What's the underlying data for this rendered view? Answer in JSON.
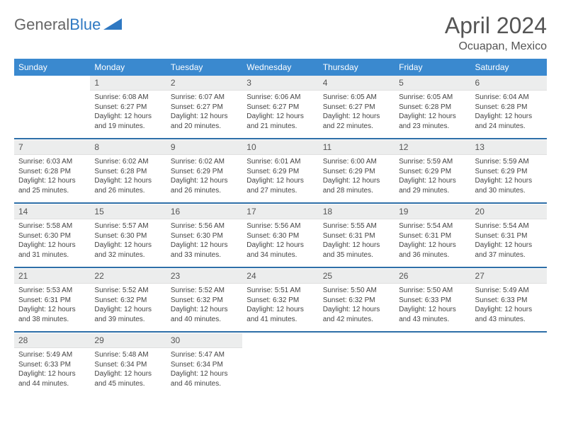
{
  "header": {
    "logo_general": "General",
    "logo_blue": "Blue",
    "month_title": "April 2024",
    "location": "Ocuapan, Mexico"
  },
  "colors": {
    "header_bg": "#3a89cf",
    "daynum_bg": "#eceded",
    "week_divider": "#2e6fa8",
    "text": "#444444",
    "title": "#555555"
  },
  "weekdays": [
    "Sunday",
    "Monday",
    "Tuesday",
    "Wednesday",
    "Thursday",
    "Friday",
    "Saturday"
  ],
  "weeks": [
    [
      null,
      {
        "n": "1",
        "sr": "Sunrise: 6:08 AM",
        "ss": "Sunset: 6:27 PM",
        "d1": "Daylight: 12 hours",
        "d2": "and 19 minutes."
      },
      {
        "n": "2",
        "sr": "Sunrise: 6:07 AM",
        "ss": "Sunset: 6:27 PM",
        "d1": "Daylight: 12 hours",
        "d2": "and 20 minutes."
      },
      {
        "n": "3",
        "sr": "Sunrise: 6:06 AM",
        "ss": "Sunset: 6:27 PM",
        "d1": "Daylight: 12 hours",
        "d2": "and 21 minutes."
      },
      {
        "n": "4",
        "sr": "Sunrise: 6:05 AM",
        "ss": "Sunset: 6:27 PM",
        "d1": "Daylight: 12 hours",
        "d2": "and 22 minutes."
      },
      {
        "n": "5",
        "sr": "Sunrise: 6:05 AM",
        "ss": "Sunset: 6:28 PM",
        "d1": "Daylight: 12 hours",
        "d2": "and 23 minutes."
      },
      {
        "n": "6",
        "sr": "Sunrise: 6:04 AM",
        "ss": "Sunset: 6:28 PM",
        "d1": "Daylight: 12 hours",
        "d2": "and 24 minutes."
      }
    ],
    [
      {
        "n": "7",
        "sr": "Sunrise: 6:03 AM",
        "ss": "Sunset: 6:28 PM",
        "d1": "Daylight: 12 hours",
        "d2": "and 25 minutes."
      },
      {
        "n": "8",
        "sr": "Sunrise: 6:02 AM",
        "ss": "Sunset: 6:28 PM",
        "d1": "Daylight: 12 hours",
        "d2": "and 26 minutes."
      },
      {
        "n": "9",
        "sr": "Sunrise: 6:02 AM",
        "ss": "Sunset: 6:29 PM",
        "d1": "Daylight: 12 hours",
        "d2": "and 26 minutes."
      },
      {
        "n": "10",
        "sr": "Sunrise: 6:01 AM",
        "ss": "Sunset: 6:29 PM",
        "d1": "Daylight: 12 hours",
        "d2": "and 27 minutes."
      },
      {
        "n": "11",
        "sr": "Sunrise: 6:00 AM",
        "ss": "Sunset: 6:29 PM",
        "d1": "Daylight: 12 hours",
        "d2": "and 28 minutes."
      },
      {
        "n": "12",
        "sr": "Sunrise: 5:59 AM",
        "ss": "Sunset: 6:29 PM",
        "d1": "Daylight: 12 hours",
        "d2": "and 29 minutes."
      },
      {
        "n": "13",
        "sr": "Sunrise: 5:59 AM",
        "ss": "Sunset: 6:29 PM",
        "d1": "Daylight: 12 hours",
        "d2": "and 30 minutes."
      }
    ],
    [
      {
        "n": "14",
        "sr": "Sunrise: 5:58 AM",
        "ss": "Sunset: 6:30 PM",
        "d1": "Daylight: 12 hours",
        "d2": "and 31 minutes."
      },
      {
        "n": "15",
        "sr": "Sunrise: 5:57 AM",
        "ss": "Sunset: 6:30 PM",
        "d1": "Daylight: 12 hours",
        "d2": "and 32 minutes."
      },
      {
        "n": "16",
        "sr": "Sunrise: 5:56 AM",
        "ss": "Sunset: 6:30 PM",
        "d1": "Daylight: 12 hours",
        "d2": "and 33 minutes."
      },
      {
        "n": "17",
        "sr": "Sunrise: 5:56 AM",
        "ss": "Sunset: 6:30 PM",
        "d1": "Daylight: 12 hours",
        "d2": "and 34 minutes."
      },
      {
        "n": "18",
        "sr": "Sunrise: 5:55 AM",
        "ss": "Sunset: 6:31 PM",
        "d1": "Daylight: 12 hours",
        "d2": "and 35 minutes."
      },
      {
        "n": "19",
        "sr": "Sunrise: 5:54 AM",
        "ss": "Sunset: 6:31 PM",
        "d1": "Daylight: 12 hours",
        "d2": "and 36 minutes."
      },
      {
        "n": "20",
        "sr": "Sunrise: 5:54 AM",
        "ss": "Sunset: 6:31 PM",
        "d1": "Daylight: 12 hours",
        "d2": "and 37 minutes."
      }
    ],
    [
      {
        "n": "21",
        "sr": "Sunrise: 5:53 AM",
        "ss": "Sunset: 6:31 PM",
        "d1": "Daylight: 12 hours",
        "d2": "and 38 minutes."
      },
      {
        "n": "22",
        "sr": "Sunrise: 5:52 AM",
        "ss": "Sunset: 6:32 PM",
        "d1": "Daylight: 12 hours",
        "d2": "and 39 minutes."
      },
      {
        "n": "23",
        "sr": "Sunrise: 5:52 AM",
        "ss": "Sunset: 6:32 PM",
        "d1": "Daylight: 12 hours",
        "d2": "and 40 minutes."
      },
      {
        "n": "24",
        "sr": "Sunrise: 5:51 AM",
        "ss": "Sunset: 6:32 PM",
        "d1": "Daylight: 12 hours",
        "d2": "and 41 minutes."
      },
      {
        "n": "25",
        "sr": "Sunrise: 5:50 AM",
        "ss": "Sunset: 6:32 PM",
        "d1": "Daylight: 12 hours",
        "d2": "and 42 minutes."
      },
      {
        "n": "26",
        "sr": "Sunrise: 5:50 AM",
        "ss": "Sunset: 6:33 PM",
        "d1": "Daylight: 12 hours",
        "d2": "and 43 minutes."
      },
      {
        "n": "27",
        "sr": "Sunrise: 5:49 AM",
        "ss": "Sunset: 6:33 PM",
        "d1": "Daylight: 12 hours",
        "d2": "and 43 minutes."
      }
    ],
    [
      {
        "n": "28",
        "sr": "Sunrise: 5:49 AM",
        "ss": "Sunset: 6:33 PM",
        "d1": "Daylight: 12 hours",
        "d2": "and 44 minutes."
      },
      {
        "n": "29",
        "sr": "Sunrise: 5:48 AM",
        "ss": "Sunset: 6:34 PM",
        "d1": "Daylight: 12 hours",
        "d2": "and 45 minutes."
      },
      {
        "n": "30",
        "sr": "Sunrise: 5:47 AM",
        "ss": "Sunset: 6:34 PM",
        "d1": "Daylight: 12 hours",
        "d2": "and 46 minutes."
      },
      null,
      null,
      null,
      null
    ]
  ]
}
